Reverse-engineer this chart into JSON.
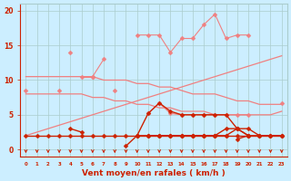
{
  "x": [
    0,
    1,
    2,
    3,
    4,
    5,
    6,
    7,
    8,
    9,
    10,
    11,
    12,
    13,
    14,
    15,
    16,
    17,
    18,
    19,
    20,
    21,
    22,
    23
  ],
  "series": [
    {
      "name": "jagged_top_connected",
      "color": "#F08080",
      "lw": 0.8,
      "marker": "D",
      "markersize": 2.5,
      "y": [
        null,
        null,
        null,
        null,
        14.0,
        null,
        10.5,
        13.0,
        null,
        null,
        16.5,
        16.5,
        16.5,
        14.0,
        16.0,
        16.0,
        18.0,
        19.5,
        16.0,
        16.5,
        16.5,
        null,
        null,
        null
      ]
    },
    {
      "name": "upper_envelope_top",
      "color": "#F08080",
      "lw": 0.8,
      "marker": "D",
      "markersize": 2.5,
      "y": [
        8.5,
        null,
        null,
        8.5,
        null,
        10.5,
        10.5,
        null,
        8.5,
        null,
        null,
        null,
        null,
        null,
        null,
        null,
        null,
        null,
        null,
        null,
        null,
        null,
        null,
        null
      ]
    },
    {
      "name": "top_flat_line",
      "color": "#F08080",
      "lw": 0.9,
      "marker": null,
      "markersize": 0,
      "y": [
        10.5,
        10.5,
        10.5,
        10.5,
        10.5,
        10.5,
        10.5,
        10.0,
        10.0,
        10.0,
        9.5,
        9.5,
        9.0,
        9.0,
        8.5,
        8.0,
        8.0,
        8.0,
        7.5,
        7.0,
        7.0,
        6.5,
        6.5,
        6.5
      ]
    },
    {
      "name": "bottom_flat_line",
      "color": "#F08080",
      "lw": 0.9,
      "marker": null,
      "markersize": 0,
      "y": [
        8.0,
        8.0,
        8.0,
        8.0,
        8.0,
        8.0,
        7.5,
        7.5,
        7.0,
        7.0,
        6.5,
        6.5,
        6.0,
        6.0,
        5.5,
        5.5,
        5.5,
        5.0,
        5.0,
        5.0,
        5.0,
        5.0,
        5.0,
        5.5
      ]
    },
    {
      "name": "diagonal_rising",
      "color": "#F08080",
      "lw": 0.9,
      "marker": null,
      "markersize": 0,
      "y": [
        2.0,
        2.5,
        3.0,
        3.5,
        4.0,
        4.5,
        5.0,
        5.5,
        6.0,
        6.5,
        7.0,
        7.5,
        8.0,
        8.5,
        9.0,
        9.5,
        10.0,
        10.5,
        11.0,
        11.5,
        12.0,
        12.5,
        13.0,
        13.5
      ]
    },
    {
      "name": "mid_markers_line",
      "color": "#F08080",
      "lw": 0.9,
      "marker": "D",
      "markersize": 2.5,
      "y": [
        null,
        null,
        null,
        null,
        null,
        null,
        null,
        null,
        null,
        null,
        null,
        5.2,
        6.7,
        5.2,
        5.0,
        5.0,
        5.0,
        5.0,
        5.0,
        5.0,
        5.0,
        null,
        null,
        6.7
      ]
    },
    {
      "name": "dark_main",
      "color": "#CC2200",
      "lw": 1.0,
      "marker": "D",
      "markersize": 2.5,
      "y": [
        2.0,
        2.0,
        2.0,
        2.0,
        2.0,
        2.0,
        2.0,
        2.0,
        2.0,
        2.0,
        2.0,
        2.0,
        2.0,
        2.0,
        2.0,
        2.0,
        2.0,
        2.0,
        2.0,
        2.0,
        2.0,
        2.0,
        2.0,
        2.0
      ]
    },
    {
      "name": "dark_spike_up",
      "color": "#CC2200",
      "lw": 1.0,
      "marker": "D",
      "markersize": 2.5,
      "y": [
        null,
        null,
        null,
        null,
        3.0,
        2.5,
        null,
        null,
        null,
        null,
        null,
        null,
        null,
        null,
        null,
        null,
        null,
        null,
        null,
        null,
        null,
        null,
        null,
        null
      ]
    },
    {
      "name": "dark_dip_down",
      "color": "#CC2200",
      "lw": 1.0,
      "marker": "D",
      "markersize": 2.5,
      "y": [
        null,
        null,
        null,
        null,
        null,
        null,
        null,
        null,
        null,
        0.5,
        2.0,
        null,
        null,
        null,
        null,
        null,
        null,
        null,
        null,
        null,
        null,
        null,
        null,
        null
      ]
    },
    {
      "name": "dark_mid_rise",
      "color": "#CC2200",
      "lw": 1.0,
      "marker": "D",
      "markersize": 2.5,
      "y": [
        null,
        null,
        null,
        null,
        null,
        null,
        null,
        null,
        null,
        null,
        null,
        2.0,
        2.0,
        2.0,
        2.0,
        2.0,
        2.0,
        2.0,
        3.0,
        3.0,
        2.0,
        2.0,
        2.0,
        2.0
      ]
    },
    {
      "name": "dark_upper_mid",
      "color": "#CC2200",
      "lw": 1.0,
      "marker": "D",
      "markersize": 2.5,
      "y": [
        null,
        null,
        null,
        null,
        null,
        null,
        null,
        null,
        null,
        null,
        2.0,
        2.0,
        2.0,
        2.0,
        2.0,
        2.0,
        2.0,
        2.0,
        2.0,
        3.0,
        3.0,
        2.0,
        2.0,
        2.0
      ]
    },
    {
      "name": "dark_arch",
      "color": "#CC2200",
      "lw": 1.0,
      "marker": "D",
      "markersize": 2.5,
      "y": [
        null,
        null,
        null,
        null,
        null,
        null,
        null,
        null,
        null,
        null,
        2.0,
        5.2,
        6.7,
        5.5,
        5.0,
        5.0,
        5.0,
        5.0,
        5.0,
        3.0,
        2.0,
        null,
        null,
        null
      ]
    },
    {
      "name": "dark_line_19_20",
      "color": "#CC2200",
      "lw": 1.0,
      "marker": "D",
      "markersize": 2.5,
      "y": [
        null,
        null,
        null,
        null,
        null,
        null,
        null,
        null,
        null,
        null,
        null,
        null,
        null,
        null,
        null,
        null,
        null,
        null,
        null,
        1.5,
        2.0,
        null,
        null,
        null
      ]
    }
  ],
  "xlim": [
    -0.5,
    23.5
  ],
  "ylim": [
    -1,
    21
  ],
  "yticks": [
    0,
    5,
    10,
    15,
    20
  ],
  "ytick_labels": [
    "0",
    "5",
    "10",
    "15",
    "20"
  ],
  "xtick_labels": [
    "0",
    "1",
    "2",
    "3",
    "4",
    "5",
    "6",
    "7",
    "8",
    "9",
    "10",
    "11",
    "12",
    "13",
    "14",
    "15",
    "16",
    "17",
    "18",
    "19",
    "20",
    "21",
    "22",
    "23"
  ],
  "xlabel": "Vent moyen/en rafales ( km/h )",
  "bg_color": "#cceeff",
  "grid_color": "#aacccc",
  "tick_color": "#CC2200",
  "label_color": "#CC2200"
}
